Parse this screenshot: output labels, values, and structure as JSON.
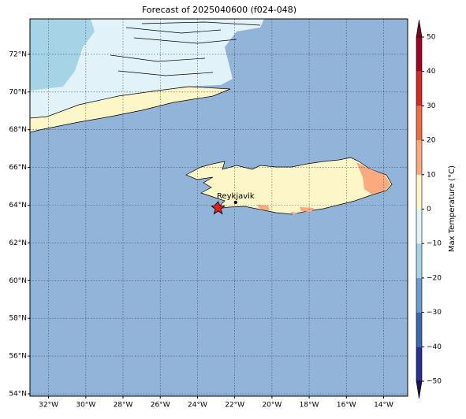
{
  "title": "Forecast of 2025040600 (f024-048)",
  "map": {
    "lon_range": [
      -33,
      -12.708
    ],
    "lat_range": [
      53.875,
      73.875
    ],
    "lon_ticks": [
      {
        "value": -32,
        "label": "32°W"
      },
      {
        "value": -30,
        "label": "30°W"
      },
      {
        "value": -28,
        "label": "28°W"
      },
      {
        "value": -26,
        "label": "26°W"
      },
      {
        "value": -24,
        "label": "24°W"
      },
      {
        "value": -22,
        "label": "22°W"
      },
      {
        "value": -20,
        "label": "20°W"
      },
      {
        "value": -18,
        "label": "18°W"
      },
      {
        "value": -16,
        "label": "16°W"
      },
      {
        "value": -14,
        "label": "14°W"
      }
    ],
    "lat_ticks": [
      {
        "value": 54,
        "label": "54°N"
      },
      {
        "value": 56,
        "label": "56°N"
      },
      {
        "value": 58,
        "label": "58°N"
      },
      {
        "value": 60,
        "label": "60°N"
      },
      {
        "value": 62,
        "label": "62°N"
      },
      {
        "value": 64,
        "label": "64°N"
      },
      {
        "value": 66,
        "label": "66°N"
      },
      {
        "value": 68,
        "label": "68°N"
      },
      {
        "value": 70,
        "label": "70°N"
      },
      {
        "value": 72,
        "label": "72°N"
      }
    ],
    "city": {
      "name": "Reykjavik",
      "lat": 64.15,
      "lon": -21.95
    }
  },
  "colorbar": {
    "label": "Max Temperature (°C)",
    "ticks": [
      {
        "value": -50,
        "label": "−50"
      },
      {
        "value": -40,
        "label": "−40"
      },
      {
        "value": -30,
        "label": "−30"
      },
      {
        "value": -20,
        "label": "−20"
      },
      {
        "value": -10,
        "label": "−10"
      },
      0,
      10,
      20,
      30,
      40,
      50
    ],
    "colors": [
      "#2b2f8f",
      "#3a67ad",
      "#6b9ccb",
      "#a7d3e6",
      "#e1f3f8",
      "#fdf6c8",
      "#fba97f",
      "#ef6b46",
      "#cf2c28",
      "#a00026"
    ],
    "under_color": "#14165a",
    "over_color": "#7a0021"
  }
}
